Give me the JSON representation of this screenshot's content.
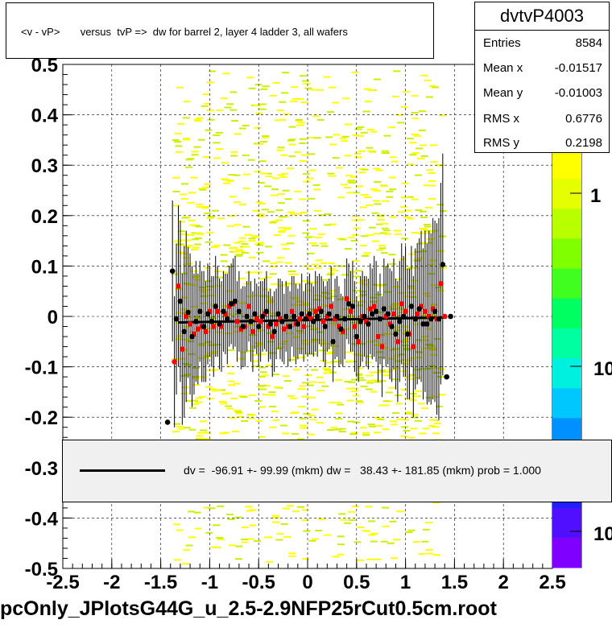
{
  "title": "<v - vP>       versus  tvP =>  dw for barrel 2, layer 4 ladder 3, all wafers",
  "footer": "pcOnly_JPlotsG44G_u_2.5-2.9NFP25rCut0.5cm.root",
  "stats": {
    "name": "dvtvP4003",
    "rows": [
      {
        "k": "Entries",
        "v": "8584"
      },
      {
        "k": "Mean x",
        "v": "-0.01517"
      },
      {
        "k": "Mean y",
        "v": "-0.01003"
      },
      {
        "k": "RMS x",
        "v": "0.6776"
      },
      {
        "k": "RMS y",
        "v": "0.2198"
      }
    ]
  },
  "fit_label": "dv =  -96.91 +- 99.99 (mkm) dw =   38.43 +- 181.85 (mkm) prob = 1.000",
  "palette_labels": [
    "1",
    "10",
    "10"
  ],
  "chart_data": {
    "type": "scatter",
    "xlim": [
      -2.5,
      2.5
    ],
    "ylim": [
      -0.5,
      0.5
    ],
    "x_ticks": [
      "-2.5",
      "-2",
      "-1.5",
      "-1",
      "-0.5",
      "0",
      "0.5",
      "1",
      "1.5",
      "2",
      "2.5"
    ],
    "y_ticks": [
      "-0.5",
      "-0.4",
      "-0.3",
      "-0.2",
      "-0.1",
      "0",
      "0.1",
      "0.2",
      "0.3",
      "0.4",
      "0.5"
    ],
    "grid": true,
    "colors": {
      "black_points": "#000000",
      "red_points": "#ff0000",
      "fit": "#000000",
      "density": "#ffff00",
      "density_light": "#ccee00"
    },
    "fit_line": {
      "x": [
        -1.32,
        1.42
      ],
      "y": [
        -0.012,
        -0.002
      ]
    },
    "series": [
      {
        "x": [
          -1.43,
          -1.38,
          -1.34,
          -1.3,
          -1.26,
          -1.22,
          -1.18,
          -1.14,
          -1.1,
          -1.06,
          -1.02,
          -0.98,
          -0.94,
          -0.9,
          -0.86,
          -0.82,
          -0.78,
          -0.74,
          -0.7,
          -0.66,
          -0.62,
          -0.58,
          -0.54,
          -0.5,
          -0.46,
          -0.42,
          -0.38,
          -0.34,
          -0.3,
          -0.26,
          -0.22,
          -0.18,
          -0.14,
          -0.1,
          -0.06,
          -0.02,
          0.02,
          0.06,
          0.1,
          0.14,
          0.18,
          0.22,
          0.26,
          0.3,
          0.34,
          0.38,
          0.42,
          0.46,
          0.5,
          0.54,
          0.58,
          0.62,
          0.66,
          0.7,
          0.74,
          0.78,
          0.82,
          0.86,
          0.9,
          0.94,
          0.98,
          1.02,
          1.06,
          1.1,
          1.14,
          1.18,
          1.22,
          1.26,
          1.3,
          1.34,
          1.38,
          1.42,
          1.46
        ],
        "y": [
          -0.21,
          0.09,
          -0.005,
          0.03,
          -0.03,
          0.008,
          -0.04,
          -0.01,
          0.01,
          -0.02,
          0.005,
          -0.01,
          0.02,
          -0.015,
          0.01,
          -0.005,
          0.025,
          0.03,
          0.01,
          -0.02,
          0.0,
          -0.01,
          0.005,
          -0.02,
          0.0,
          0.01,
          -0.015,
          -0.03,
          0.005,
          -0.01,
          0.0,
          -0.02,
          0.0,
          -0.015,
          0.005,
          -0.005,
          0.005,
          -0.01,
          0.0,
          0.01,
          -0.02,
          0.005,
          -0.05,
          0.0,
          -0.025,
          -0.005,
          0.025,
          0.02,
          -0.04,
          -0.01,
          0.0,
          -0.015,
          0.005,
          0.01,
          -0.005,
          0.015,
          0.005,
          -0.02,
          -0.035,
          -0.01,
          0.0,
          -0.035,
          0.02,
          -0.005,
          0.015,
          -0.015,
          -0.015,
          -0.005,
          0.01,
          -0.005,
          0.103,
          -0.12,
          0.0
        ],
        "err": [
          0.0,
          0.14,
          0.15,
          0.16,
          0.17,
          0.13,
          0.14,
          0.12,
          0.1,
          0.11,
          0.1,
          0.09,
          0.1,
          0.09,
          0.08,
          0.09,
          0.08,
          0.09,
          0.08,
          0.08,
          0.07,
          0.08,
          0.07,
          0.08,
          0.07,
          0.08,
          0.07,
          0.08,
          0.07,
          0.08,
          0.07,
          0.07,
          0.08,
          0.07,
          0.08,
          0.07,
          0.08,
          0.07,
          0.08,
          0.07,
          0.08,
          0.07,
          0.08,
          0.08,
          0.07,
          0.08,
          0.08,
          0.09,
          0.08,
          0.09,
          0.08,
          0.09,
          0.09,
          0.1,
          0.09,
          0.1,
          0.1,
          0.11,
          0.11,
          0.12,
          0.12,
          0.13,
          0.12,
          0.14,
          0.14,
          0.15,
          0.16,
          0.17,
          0.18,
          0.2,
          0.22,
          0.0,
          0.0
        ]
      },
      {
        "x": [
          -1.36,
          -1.32,
          -1.28,
          -1.24,
          -1.2,
          -1.16,
          -1.12,
          -1.08,
          -1.04,
          -1.0,
          -0.96,
          -0.92,
          -0.88,
          -0.84,
          -0.8,
          -0.76,
          -0.72,
          -0.68,
          -0.64,
          -0.6,
          -0.56,
          -0.52,
          -0.48,
          -0.44,
          -0.4,
          -0.36,
          -0.32,
          -0.28,
          -0.24,
          -0.2,
          -0.16,
          -0.12,
          -0.08,
          -0.04,
          0.0,
          0.04,
          0.08,
          0.12,
          0.16,
          0.2,
          0.24,
          0.28,
          0.32,
          0.36,
          0.4,
          0.44,
          0.48,
          0.52,
          0.56,
          0.6,
          0.64,
          0.68,
          0.72,
          0.76,
          0.8,
          0.84,
          0.88,
          0.92,
          0.96,
          1.0,
          1.04,
          1.08,
          1.12,
          1.16,
          1.2,
          1.24,
          1.28,
          1.32,
          1.36,
          1.4
        ],
        "y": [
          -0.09,
          0.06,
          -0.065,
          0.0,
          -0.015,
          -0.035,
          -0.025,
          -0.02,
          -0.03,
          0.01,
          -0.02,
          0.01,
          -0.02,
          0.005,
          0.02,
          0.025,
          -0.01,
          -0.025,
          -0.02,
          0.02,
          -0.03,
          -0.005,
          -0.01,
          0.005,
          -0.02,
          -0.04,
          -0.015,
          -0.005,
          -0.025,
          -0.02,
          0.01,
          -0.015,
          -0.005,
          -0.02,
          0.0,
          -0.005,
          0.01,
          0.015,
          -0.01,
          0.0,
          0.02,
          -0.005,
          -0.02,
          -0.03,
          0.035,
          0.01,
          -0.02,
          -0.05,
          0.0,
          -0.01,
          0.015,
          0.02,
          -0.04,
          -0.06,
          0.0,
          -0.015,
          0.005,
          -0.05,
          0.025,
          0.01,
          -0.035,
          -0.06,
          0.005,
          0.02,
          0.01,
          0.0,
          0.015,
          -0.005,
          0.065,
          0.0
        ],
        "err": [
          0.13,
          0.16,
          0.15,
          0.17,
          0.14,
          0.12,
          0.11,
          0.11,
          0.1,
          0.09,
          0.1,
          0.09,
          0.09,
          0.08,
          0.08,
          0.09,
          0.08,
          0.08,
          0.08,
          0.07,
          0.08,
          0.07,
          0.08,
          0.07,
          0.07,
          0.08,
          0.07,
          0.08,
          0.07,
          0.08,
          0.07,
          0.08,
          0.07,
          0.07,
          0.08,
          0.07,
          0.08,
          0.07,
          0.08,
          0.07,
          0.08,
          0.08,
          0.08,
          0.07,
          0.08,
          0.08,
          0.09,
          0.08,
          0.09,
          0.09,
          0.09,
          0.1,
          0.09,
          0.1,
          0.1,
          0.11,
          0.11,
          0.12,
          0.12,
          0.13,
          0.13,
          0.14,
          0.14,
          0.15,
          0.16,
          0.17,
          0.18,
          0.19,
          0.2,
          0.0
        ]
      }
    ]
  }
}
